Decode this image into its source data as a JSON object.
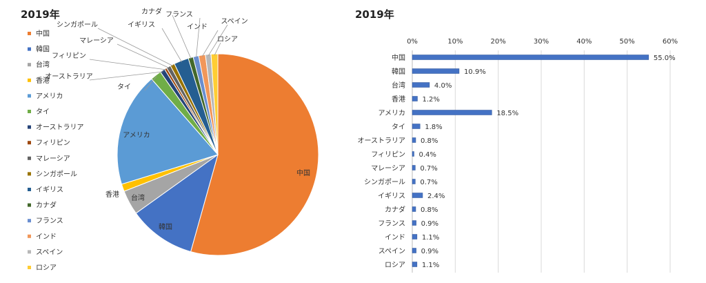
{
  "chart_data": [
    {
      "type": "pie",
      "title": "2019年",
      "legend": "left",
      "categories": [
        "中国",
        "韓国",
        "台湾",
        "香港",
        "アメリカ",
        "タイ",
        "オーストラリア",
        "フィリピン",
        "マレーシア",
        "シンガポール",
        "イギリス",
        "カナダ",
        "フランス",
        "インド",
        "スペイン",
        "ロシア"
      ],
      "values": [
        55.0,
        10.9,
        4.0,
        1.2,
        18.5,
        1.8,
        0.8,
        0.4,
        0.7,
        0.7,
        2.4,
        0.8,
        0.9,
        1.1,
        0.9,
        1.1
      ],
      "colors": [
        "#ED7D31",
        "#4472C4",
        "#A5A5A5",
        "#FFC000",
        "#5B9BD5",
        "#70AD47",
        "#264478",
        "#9E480E",
        "#636363",
        "#997300",
        "#255E91",
        "#43682B",
        "#698ED0",
        "#F1975A",
        "#B7B7B7",
        "#FFCD33"
      ]
    },
    {
      "type": "bar",
      "orientation": "horizontal",
      "title": "2019年",
      "categories": [
        "中国",
        "韓国",
        "台湾",
        "香港",
        "アメリカ",
        "タイ",
        "オーストラリア",
        "フィリピン",
        "マレーシア",
        "シンガポール",
        "イギリス",
        "カナダ",
        "フランス",
        "インド",
        "スペイン",
        "ロシア"
      ],
      "values": [
        55.0,
        10.9,
        4.0,
        1.2,
        18.5,
        1.8,
        0.8,
        0.4,
        0.7,
        0.7,
        2.4,
        0.8,
        0.9,
        1.1,
        0.9,
        1.1
      ],
      "data_labels": [
        "55.0%",
        "10.9%",
        "4.0%",
        "1.2%",
        "18.5%",
        "1.8%",
        "0.8%",
        "0.4%",
        "0.7%",
        "0.7%",
        "2.4%",
        "0.8%",
        "0.9%",
        "1.1%",
        "0.9%",
        "1.1%"
      ],
      "xticks": [
        "0%",
        "10%",
        "20%",
        "30%",
        "40%",
        "50%",
        "60%"
      ],
      "xlim": [
        0,
        60
      ],
      "grid": true,
      "bar_color": "#4472C4"
    }
  ]
}
